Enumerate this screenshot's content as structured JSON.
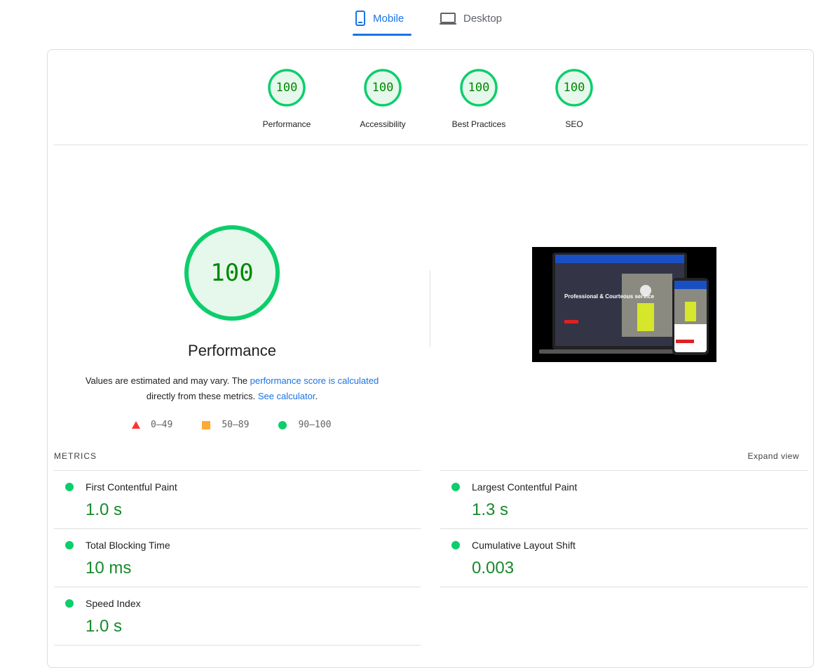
{
  "tabs": [
    "Mobile",
    "Desktop"
  ],
  "active_tab": 0,
  "scores": [
    {
      "score": 100,
      "label": "Performance"
    },
    {
      "score": 100,
      "label": "Accessibility"
    },
    {
      "score": 100,
      "label": "Best Practices"
    },
    {
      "score": 100,
      "label": "SEO"
    }
  ],
  "performance": {
    "score": 100,
    "title": "Performance",
    "description": [
      "Values are estimated and may vary. The ",
      "performance score is calculated",
      " directly from these metrics. ",
      "See calculator",
      "."
    ],
    "legend": [
      "0–49",
      "50–89",
      "90–100"
    ]
  },
  "screenshot_headline": "Professional & Courteous service",
  "metrics": {
    "heading": "METRICS",
    "expand": "Expand view",
    "items": [
      {
        "name": "First Contentful Paint",
        "value": "1.0 s"
      },
      {
        "name": "Largest Contentful Paint",
        "value": "1.3 s"
      },
      {
        "name": "Total Blocking Time",
        "value": "10 ms"
      },
      {
        "name": "Cumulative Layout Shift",
        "value": "0.003"
      },
      {
        "name": "Speed Index",
        "value": "1.0 s"
      }
    ]
  }
}
